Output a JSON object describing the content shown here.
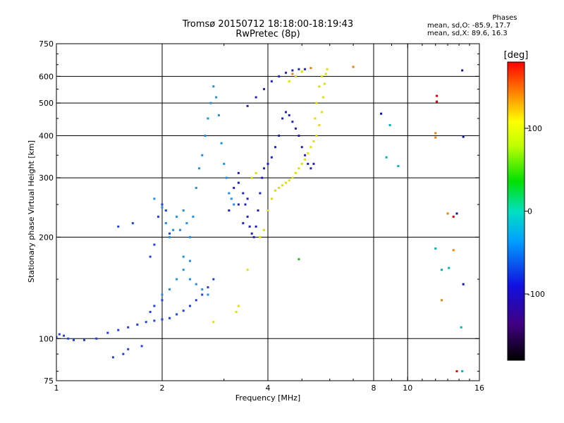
{
  "chart_data": {
    "type": "scatter",
    "title": "Tromsø 20150712 18:18:00-18:19:43",
    "subtitle": "RwPretec (8p)",
    "xlabel": "Frequency [MHz]",
    "ylabel": "Stationary phase Virtual Height [km]",
    "x_scale": "log",
    "y_scale": "log",
    "xlim": [
      1,
      16
    ],
    "ylim": [
      75,
      750
    ],
    "x_ticks": [
      1,
      2,
      4,
      8,
      10,
      16
    ],
    "x_tick_labels": [
      "1",
      "2",
      "4",
      "8",
      "10",
      "16"
    ],
    "x_gridlines": [
      2,
      4,
      8,
      10
    ],
    "y_ticks": [
      75,
      100,
      200,
      300,
      400,
      500,
      600,
      750
    ],
    "y_tick_labels": [
      "75",
      "100",
      "200",
      "300",
      "400",
      "500",
      "600",
      "750"
    ],
    "y_gridlines": [
      100,
      200,
      300,
      400,
      500,
      600
    ],
    "grid": true,
    "stats": {
      "heading": "Phases",
      "line1": "mean, sd,O: -85.9, 17.7",
      "line2": "mean, sd,X:  89.6, 16.3"
    },
    "colorbar": {
      "label": "[deg]",
      "range": [
        -180,
        180
      ],
      "ticks": [
        100,
        0,
        -100
      ],
      "tick_labels": [
        "100",
        "0",
        "-100"
      ]
    },
    "series": [
      {
        "color": "#2040e0",
        "points": [
          [
            1.0,
            101
          ],
          [
            1.02,
            103
          ],
          [
            1.05,
            102
          ],
          [
            1.08,
            100
          ],
          [
            1.12,
            99
          ],
          [
            1.2,
            99
          ],
          [
            1.3,
            100
          ],
          [
            1.4,
            104
          ],
          [
            1.5,
            106
          ],
          [
            1.6,
            108
          ],
          [
            1.7,
            110
          ],
          [
            1.8,
            112
          ],
          [
            1.9,
            113
          ],
          [
            2.0,
            114
          ],
          [
            2.1,
            115
          ],
          [
            2.2,
            118
          ],
          [
            2.3,
            121
          ],
          [
            2.4,
            125
          ],
          [
            2.5,
            130
          ],
          [
            2.6,
            135
          ],
          [
            2.7,
            142
          ],
          [
            2.8,
            150
          ],
          [
            1.45,
            88
          ],
          [
            1.55,
            90
          ],
          [
            1.6,
            93
          ],
          [
            1.75,
            95
          ],
          [
            1.5,
            215
          ],
          [
            1.65,
            220
          ],
          [
            1.85,
            175
          ],
          [
            1.9,
            190
          ],
          [
            1.95,
            230
          ],
          [
            2.0,
            250
          ],
          [
            2.05,
            240
          ],
          [
            2.1,
            205
          ],
          [
            2.0,
            130
          ],
          [
            1.9,
            125
          ],
          [
            1.85,
            120
          ]
        ]
      },
      {
        "color": "#1a90f0",
        "points": [
          [
            1.9,
            260
          ],
          [
            2.0,
            245
          ],
          [
            2.05,
            220
          ],
          [
            2.1,
            200
          ],
          [
            2.15,
            210
          ],
          [
            2.2,
            230
          ],
          [
            2.25,
            210
          ],
          [
            2.3,
            240
          ],
          [
            2.35,
            220
          ],
          [
            2.4,
            200
          ],
          [
            2.45,
            230
          ],
          [
            2.5,
            280
          ],
          [
            2.55,
            320
          ],
          [
            2.6,
            350
          ],
          [
            2.65,
            400
          ],
          [
            2.7,
            450
          ],
          [
            2.75,
            500
          ],
          [
            2.8,
            560
          ],
          [
            2.85,
            520
          ],
          [
            2.9,
            460
          ],
          [
            2.95,
            380
          ],
          [
            3.0,
            330
          ],
          [
            3.05,
            300
          ],
          [
            3.1,
            270
          ],
          [
            3.15,
            260
          ],
          [
            3.2,
            250
          ],
          [
            2.3,
            160
          ],
          [
            2.4,
            150
          ],
          [
            2.5,
            145
          ],
          [
            2.6,
            140
          ],
          [
            2.7,
            135
          ],
          [
            2.2,
            150
          ],
          [
            2.1,
            140
          ],
          [
            2.0,
            135
          ],
          [
            2.3,
            175
          ],
          [
            2.4,
            170
          ]
        ]
      },
      {
        "color": "#2020c0",
        "points": [
          [
            3.3,
            290
          ],
          [
            3.4,
            270
          ],
          [
            3.45,
            250
          ],
          [
            3.5,
            230
          ],
          [
            3.55,
            215
          ],
          [
            3.6,
            205
          ],
          [
            3.65,
            200
          ],
          [
            3.7,
            215
          ],
          [
            3.75,
            240
          ],
          [
            3.8,
            270
          ],
          [
            3.85,
            300
          ],
          [
            3.9,
            320
          ],
          [
            4.0,
            330
          ],
          [
            4.1,
            345
          ],
          [
            4.2,
            370
          ],
          [
            4.3,
            400
          ],
          [
            4.4,
            450
          ],
          [
            4.5,
            470
          ],
          [
            4.6,
            460
          ],
          [
            4.7,
            440
          ],
          [
            4.8,
            420
          ],
          [
            4.9,
            400
          ],
          [
            5.0,
            370
          ],
          [
            5.1,
            350
          ],
          [
            5.2,
            330
          ],
          [
            5.3,
            320
          ],
          [
            5.4,
            330
          ],
          [
            3.5,
            490
          ],
          [
            3.7,
            520
          ],
          [
            3.9,
            550
          ],
          [
            4.1,
            580
          ],
          [
            4.3,
            600
          ],
          [
            4.5,
            615
          ],
          [
            4.7,
            625
          ],
          [
            4.9,
            630
          ],
          [
            5.1,
            630
          ],
          [
            3.3,
            250
          ],
          [
            3.4,
            220
          ],
          [
            3.5,
            260
          ],
          [
            3.2,
            280
          ],
          [
            3.3,
            310
          ],
          [
            3.1,
            240
          ]
        ]
      },
      {
        "color": "#e0e000",
        "points": [
          [
            3.8,
            200
          ],
          [
            3.9,
            210
          ],
          [
            4.0,
            240
          ],
          [
            4.1,
            260
          ],
          [
            4.2,
            275
          ],
          [
            4.3,
            280
          ],
          [
            4.4,
            285
          ],
          [
            4.5,
            290
          ],
          [
            4.6,
            295
          ],
          [
            4.7,
            300
          ],
          [
            4.8,
            310
          ],
          [
            4.9,
            320
          ],
          [
            5.0,
            330
          ],
          [
            5.1,
            340
          ],
          [
            5.2,
            355
          ],
          [
            5.3,
            370
          ],
          [
            5.4,
            385
          ],
          [
            5.5,
            400
          ],
          [
            5.6,
            430
          ],
          [
            5.7,
            470
          ],
          [
            5.75,
            520
          ],
          [
            5.8,
            570
          ],
          [
            5.85,
            610
          ],
          [
            5.9,
            630
          ],
          [
            5.7,
            600
          ],
          [
            5.6,
            560
          ],
          [
            5.5,
            500
          ],
          [
            5.45,
            450
          ],
          [
            4.6,
            580
          ],
          [
            4.8,
            600
          ],
          [
            5.0,
            620
          ],
          [
            3.6,
            300
          ],
          [
            3.7,
            310
          ],
          [
            3.5,
            160
          ],
          [
            3.3,
            125
          ],
          [
            3.25,
            120
          ],
          [
            2.8,
            112
          ]
        ]
      },
      {
        "color": "#f08000",
        "points": [
          [
            4.7,
            610
          ],
          [
            5.3,
            635
          ],
          [
            7.0,
            640
          ],
          [
            12.0,
            395
          ],
          [
            12.0,
            407
          ],
          [
            13.0,
            235
          ],
          [
            12.5,
            130
          ],
          [
            13.5,
            183
          ]
        ]
      },
      {
        "color": "#e00000",
        "points": [
          [
            12.1,
            525
          ],
          [
            12.1,
            505
          ],
          [
            13.5,
            230
          ],
          [
            13.8,
            80
          ]
        ]
      },
      {
        "color": "#00b4b4",
        "points": [
          [
            8.7,
            345
          ],
          [
            8.9,
            430
          ],
          [
            9.4,
            325
          ],
          [
            12.0,
            185
          ],
          [
            12.5,
            160
          ],
          [
            13.1,
            162
          ],
          [
            14.2,
            108
          ],
          [
            14.3,
            80
          ]
        ]
      },
      {
        "color": "#20c020",
        "points": [
          [
            4.9,
            172
          ]
        ]
      },
      {
        "color": "#1010a0",
        "points": [
          [
            8.4,
            465
          ],
          [
            13.8,
            235
          ],
          [
            14.4,
            397
          ],
          [
            14.3,
            625
          ],
          [
            14.4,
            145
          ]
        ]
      }
    ]
  }
}
